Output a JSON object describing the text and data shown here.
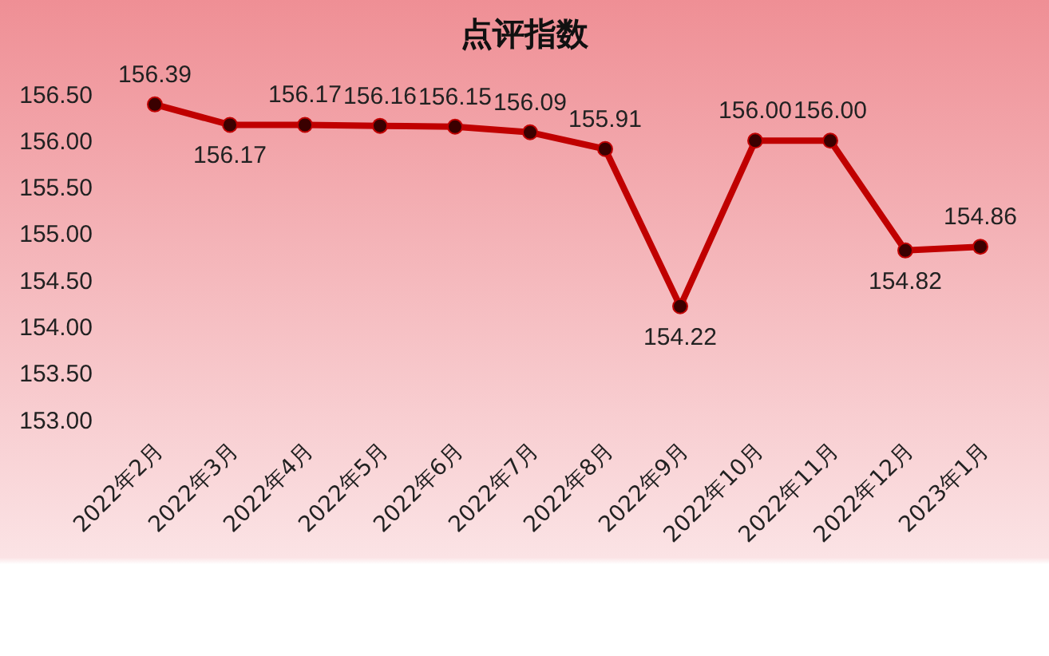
{
  "chart_data": {
    "type": "line",
    "title": "点评指数",
    "categories": [
      "2022年2月",
      "2022年3月",
      "2022年4月",
      "2022年5月",
      "2022年6月",
      "2022年7月",
      "2022年8月",
      "2022年9月",
      "2022年10月",
      "2022年11月",
      "2022年12月",
      "2023年1月"
    ],
    "series": [
      {
        "color": "#c00000",
        "values": [
          156.39,
          156.17,
          156.17,
          156.16,
          156.15,
          156.09,
          155.91,
          154.22,
          156.0,
          156.0,
          154.82,
          154.86
        ],
        "value_labels": [
          "156.39",
          "156.17",
          "156.17",
          "156.16",
          "156.15",
          "156.09",
          "155.91",
          "154.22",
          "156.00",
          "156.00",
          "154.82",
          "154.86"
        ]
      }
    ],
    "ylim": [
      153,
      156.5
    ],
    "yticks": [
      {
        "value": 153,
        "label": "153.00"
      },
      {
        "value": 153.5,
        "label": "153.50"
      },
      {
        "value": 154,
        "label": "154.00"
      },
      {
        "value": 154.5,
        "label": "154.50"
      },
      {
        "value": 155,
        "label": "155.00"
      },
      {
        "value": 155.5,
        "label": "155.50"
      },
      {
        "value": 156,
        "label": "156.00"
      },
      {
        "value": 156.5,
        "label": "156.50"
      }
    ],
    "grid": false,
    "marker": "circle",
    "line_style": "solid"
  }
}
